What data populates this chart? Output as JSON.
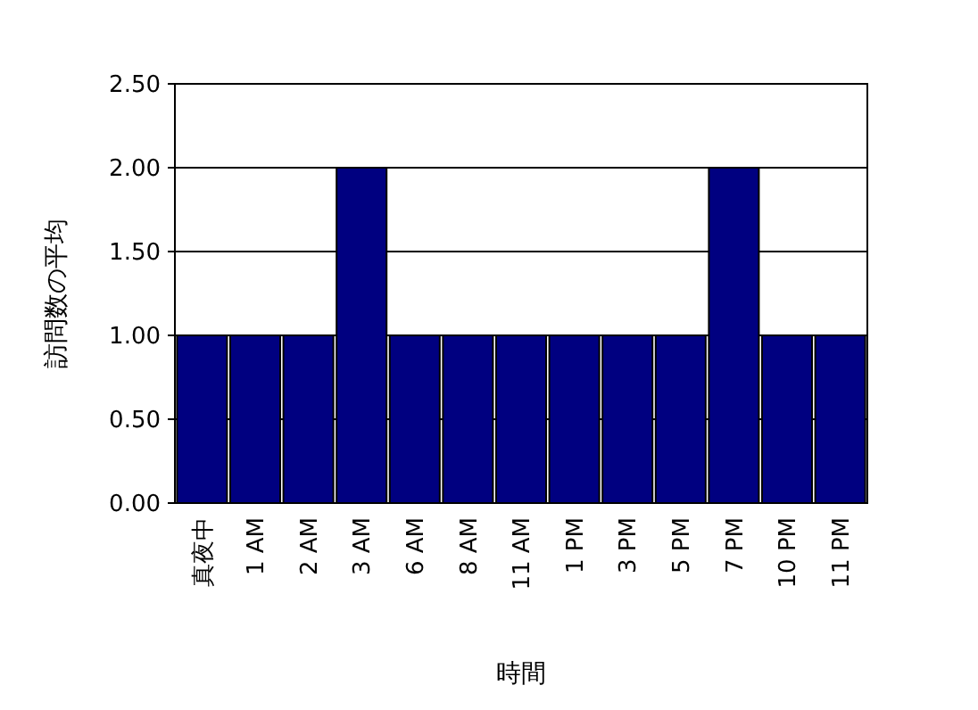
{
  "chart_data": {
    "type": "bar",
    "xlabel": "時間",
    "ylabel": "訪問数の平均",
    "categories": [
      "真夜中",
      "1 AM",
      "2 AM",
      "3 AM",
      "6 AM",
      "8 AM",
      "11 AM",
      "1 PM",
      "3 PM",
      "5 PM",
      "7 PM",
      "10 PM",
      "11 PM"
    ],
    "values": [
      1,
      1,
      1,
      2,
      1,
      1,
      1,
      1,
      1,
      1,
      2,
      1,
      1
    ],
    "color": "#000080",
    "ylim": [
      0,
      2.5
    ],
    "yticks": [
      {
        "value": 0,
        "label": "0.00"
      },
      {
        "value": 0.5,
        "label": "0.50"
      },
      {
        "value": 1,
        "label": "1.00"
      },
      {
        "value": 1.5,
        "label": "1.50"
      },
      {
        "value": 2,
        "label": "2.00"
      },
      {
        "value": 2.5,
        "label": "2.50"
      }
    ],
    "grid": "y"
  }
}
